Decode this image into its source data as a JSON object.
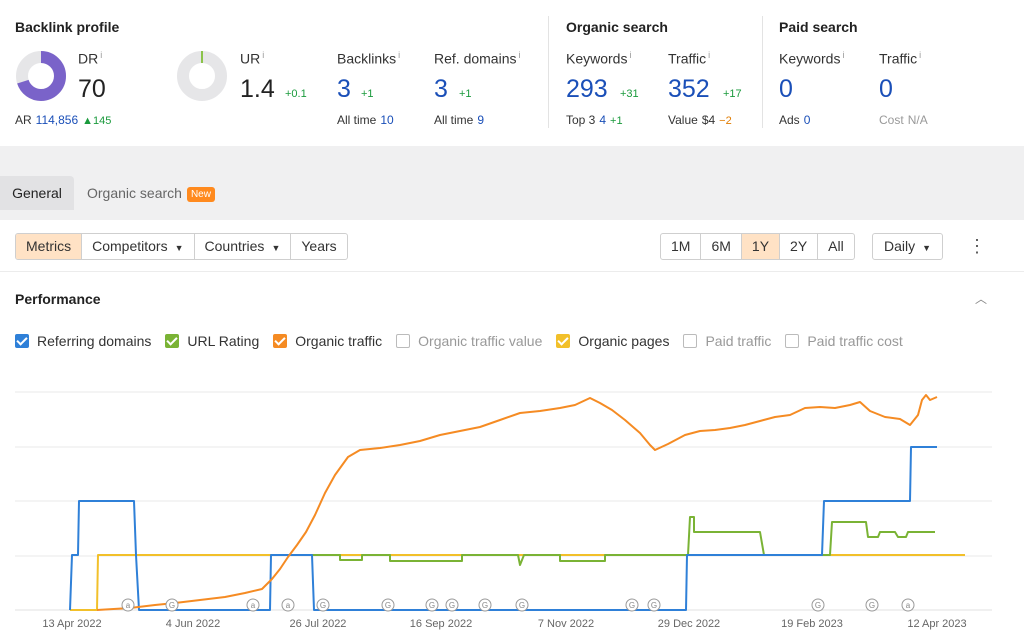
{
  "backlink_profile": {
    "title": "Backlink profile",
    "dr": {
      "label": "DR",
      "info": "i",
      "value": "70",
      "donut_fraction": 0.7
    },
    "ar": {
      "label": "AR",
      "value": "114,856",
      "delta": "▲145"
    },
    "ur": {
      "label": "UR",
      "info": "i",
      "value": "1.4",
      "delta": "+0.1"
    },
    "backlinks": {
      "label": "Backlinks",
      "info": "i",
      "value": "3",
      "delta": "+1",
      "sub_label": "All time",
      "sub_value": "10"
    },
    "ref_domains": {
      "label": "Ref. domains",
      "info": "i",
      "value": "3",
      "delta": "+1",
      "sub_label": "All time",
      "sub_value": "9"
    }
  },
  "organic_search": {
    "title": "Organic search",
    "keywords": {
      "label": "Keywords",
      "info": "i",
      "value": "293",
      "delta": "+31",
      "sub_label": "Top 3",
      "sub_value": "4",
      "sub_delta": "+1"
    },
    "traffic": {
      "label": "Traffic",
      "info": "i",
      "value": "352",
      "delta": "+17",
      "sub_label": "Value",
      "sub_value": "$4",
      "sub_delta": "−2"
    }
  },
  "paid_search": {
    "title": "Paid search",
    "keywords": {
      "label": "Keywords",
      "info": "i",
      "value": "0",
      "sub_label": "Ads",
      "sub_value": "0"
    },
    "traffic": {
      "label": "Traffic",
      "info": "i",
      "value": "0",
      "sub_label": "Cost",
      "sub_value": "N/A"
    }
  },
  "tabs": {
    "general": "General",
    "organic": "Organic search",
    "new_badge": "New"
  },
  "toolbar": {
    "metrics": "Metrics",
    "competitors": "Competitors",
    "countries": "Countries",
    "years": "Years",
    "ranges": [
      "1M",
      "6M",
      "1Y",
      "2Y",
      "All"
    ],
    "active_range": "1Y",
    "interval": "Daily"
  },
  "performance": {
    "title": "Performance",
    "legend": [
      {
        "label": "Referring domains",
        "checked": true,
        "color": "#2f80d8"
      },
      {
        "label": "URL Rating",
        "checked": true,
        "color": "#7ab335"
      },
      {
        "label": "Organic traffic",
        "checked": true,
        "color": "#f58b23"
      },
      {
        "label": "Organic traffic value",
        "checked": false,
        "color": "#bbbbbb"
      },
      {
        "label": "Organic pages",
        "checked": true,
        "color": "#f2c02a"
      },
      {
        "label": "Paid traffic",
        "checked": false,
        "color": "#bbbbbb"
      },
      {
        "label": "Paid traffic cost",
        "checked": false,
        "color": "#bbbbbb"
      }
    ]
  },
  "chart_data": {
    "type": "line",
    "x_tick_labels": [
      "13 Apr 2022",
      "4 Jun 2022",
      "26 Jul 2022",
      "16 Sep 2022",
      "7 Nov 2022",
      "29 Dec 2022",
      "19 Feb 2023",
      "12 Apr 2023"
    ],
    "annotation_markers": [
      "a",
      "G",
      "a",
      "a",
      "G",
      "G",
      "G",
      "G",
      "G",
      "G",
      "G",
      "G",
      "G",
      "G",
      "a"
    ],
    "colors": {
      "referring_domains": "#2f80d8",
      "url_rating": "#7ab335",
      "organic_traffic": "#f58b23",
      "organic_pages": "#f2c02a"
    },
    "grid": true
  }
}
